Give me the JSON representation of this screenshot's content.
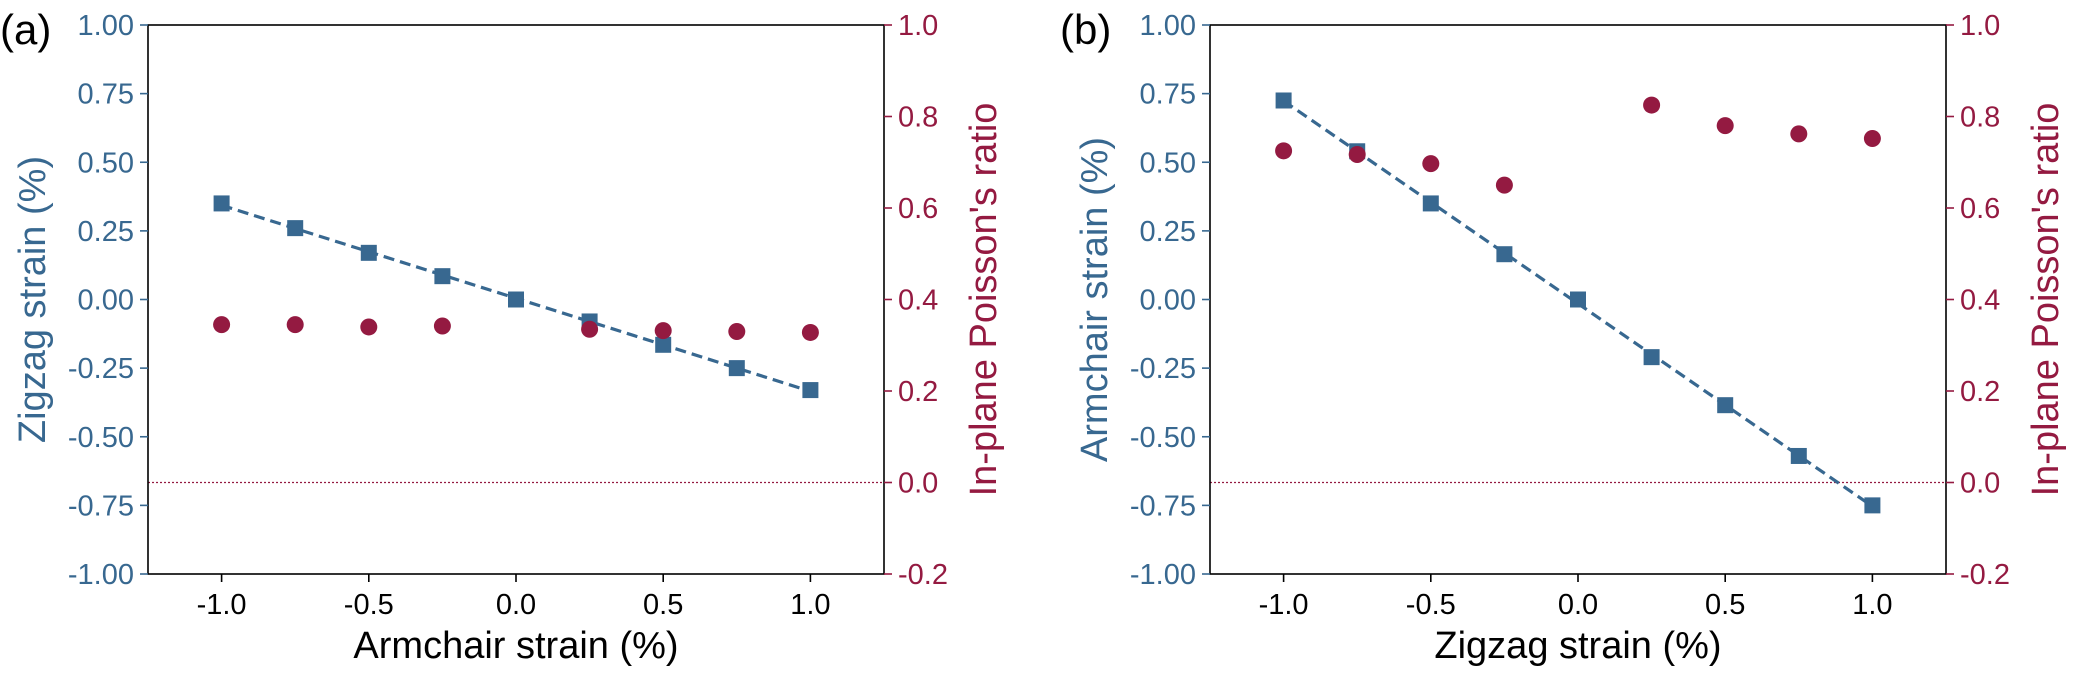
{
  "colors": {
    "left_axis": "#386890",
    "right_axis": "#941A41",
    "axes": "#000000",
    "zero_line": "#941A41"
  },
  "chart_data": [
    {
      "panel_label": "(a)",
      "type": "scatter",
      "xlabel": "Armchair strain (%)",
      "ylabel_left": "Zigzag strain (%)",
      "ylabel_right": "In-plane Poisson's ratio",
      "xlim": [
        -1.25,
        1.25
      ],
      "ylim_left": [
        -1.0,
        1.0
      ],
      "ylim_right": [
        -0.2,
        1.0
      ],
      "xticks": [
        "-1.0",
        "-0.5",
        "0.0",
        "0.5",
        "1.0"
      ],
      "yticks_left": [
        "-1.00",
        "-0.75",
        "-0.50",
        "-0.25",
        "0.00",
        "0.25",
        "0.50",
        "0.75",
        "1.00"
      ],
      "yticks_right": [
        "-0.2",
        "0.0",
        "0.2",
        "0.4",
        "0.6",
        "0.8",
        "1.0"
      ],
      "zero_line_right": 0.0,
      "grid": false,
      "series": [
        {
          "axis": "left",
          "marker": "square",
          "fit_line": "dashed",
          "x": [
            -1.0,
            -0.75,
            -0.5,
            -0.25,
            0.0,
            0.25,
            0.5,
            0.75,
            1.0
          ],
          "y": [
            0.35,
            0.26,
            0.17,
            0.085,
            0.0,
            -0.08,
            -0.165,
            -0.25,
            -0.33
          ]
        },
        {
          "axis": "right",
          "marker": "circle",
          "x": [
            -1.0,
            -0.75,
            -0.5,
            -0.25,
            0.25,
            0.5,
            0.75,
            1.0
          ],
          "y": [
            0.345,
            0.345,
            0.34,
            0.342,
            0.335,
            0.332,
            0.33,
            0.328
          ]
        }
      ]
    },
    {
      "panel_label": "(b)",
      "type": "scatter",
      "xlabel": "Zigzag strain (%)",
      "ylabel_left": "Armchair strain (%)",
      "ylabel_right": "In-plane Poisson's ratio",
      "xlim": [
        -1.25,
        1.25
      ],
      "ylim_left": [
        -1.0,
        1.0
      ],
      "ylim_right": [
        -0.2,
        1.0
      ],
      "xticks": [
        "-1.0",
        "-0.5",
        "0.0",
        "0.5",
        "1.0"
      ],
      "yticks_left": [
        "-1.00",
        "-0.75",
        "-0.50",
        "-0.25",
        "0.00",
        "0.25",
        "0.50",
        "0.75",
        "1.00"
      ],
      "yticks_right": [
        "-0.2",
        "0.0",
        "0.2",
        "0.4",
        "0.6",
        "0.8",
        "1.0"
      ],
      "zero_line_right": 0.0,
      "grid": false,
      "series": [
        {
          "axis": "left",
          "marker": "square",
          "fit_line": "dashed",
          "x": [
            -1.0,
            -0.75,
            -0.5,
            -0.25,
            0.0,
            0.25,
            0.5,
            0.75,
            1.0
          ],
          "y": [
            0.725,
            0.54,
            0.35,
            0.165,
            0.0,
            -0.21,
            -0.385,
            -0.57,
            -0.75
          ]
        },
        {
          "axis": "right",
          "marker": "circle",
          "x": [
            -1.0,
            -0.75,
            -0.5,
            -0.25,
            0.25,
            0.5,
            0.75,
            1.0
          ],
          "y": [
            0.725,
            0.717,
            0.697,
            0.65,
            0.825,
            0.78,
            0.762,
            0.752
          ]
        }
      ]
    }
  ]
}
